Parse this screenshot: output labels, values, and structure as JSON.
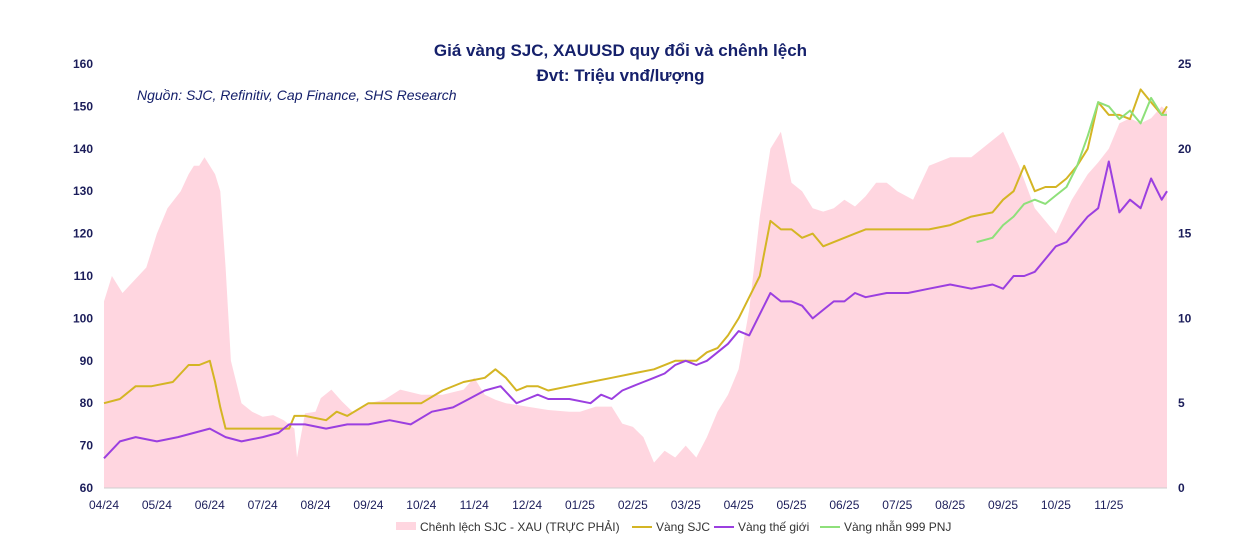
{
  "chart_data": {
    "type": "line",
    "title": "Giá vàng SJC, XAUUSD quy đổi và chênh lệch",
    "subtitle": "Đvt: Triệu vnđ/lượng",
    "source": "Nguồn: SJC, Refinitiv, Cap Finance, SHS Research",
    "x_tick_labels": [
      "04/24",
      "05/24",
      "06/24",
      "07/24",
      "08/24",
      "09/24",
      "10/24",
      "11/24",
      "12/24",
      "01/25",
      "02/25",
      "03/25",
      "04/25",
      "05/25",
      "06/25",
      "07/25",
      "08/25",
      "09/25",
      "10/25",
      "11/25"
    ],
    "x_range": [
      0,
      20.1
    ],
    "y_left": {
      "min": 60,
      "max": 160,
      "ticks": [
        60,
        70,
        80,
        90,
        100,
        110,
        120,
        130,
        140,
        150,
        160
      ]
    },
    "y_right": {
      "min": 0,
      "max": 25,
      "ticks": [
        0,
        5,
        10,
        15,
        20,
        25
      ]
    },
    "colors": {
      "spread": "#ffd6e0",
      "sjc": "#d4b524",
      "world": "#9b3fe0",
      "pnj": "#8ee07a",
      "axis": "#1b1d5a",
      "title": "#15206b"
    },
    "legend": [
      {
        "key": "spread",
        "label": "Chênh lệch SJC - XAU (TRỰC PHẢI)"
      },
      {
        "key": "sjc",
        "label": "Vàng SJC"
      },
      {
        "key": "world",
        "label": "Vàng thế giới"
      },
      {
        "key": "pnj",
        "label": "Vàng nhẫn 999 PNJ"
      }
    ],
    "series": [
      {
        "key": "spread",
        "name": "Chênh lệch SJC - XAU (TRỰC PHẢI)",
        "axis": "right",
        "type": "area",
        "x": [
          0,
          0.15,
          0.35,
          0.5,
          0.8,
          1.0,
          1.2,
          1.45,
          1.6,
          1.7,
          1.8,
          1.9,
          2.0,
          2.1,
          2.2,
          2.3,
          2.4,
          2.6,
          2.8,
          3.0,
          3.2,
          3.4,
          3.6,
          3.65,
          3.8,
          4.0,
          4.1,
          4.3,
          4.5,
          4.7,
          5.0,
          5.3,
          5.6,
          6.0,
          6.4,
          6.8,
          7.0,
          7.2,
          7.4,
          7.6,
          8.0,
          8.4,
          8.8,
          9.0,
          9.3,
          9.6,
          9.8,
          10.0,
          10.2,
          10.4,
          10.6,
          10.8,
          11.0,
          11.2,
          11.4,
          11.6,
          11.8,
          12.0,
          12.2,
          12.4,
          12.6,
          12.8,
          13.0,
          13.2,
          13.4,
          13.6,
          13.8,
          14.0,
          14.2,
          14.4,
          14.6,
          14.8,
          15.0,
          15.3,
          15.6,
          16.0,
          16.4,
          16.8,
          17.0,
          17.3,
          17.6,
          18.0,
          18.3,
          18.6,
          18.8,
          19.0,
          19.2,
          19.4,
          19.6,
          19.8,
          20.0,
          20.1
        ],
        "values": [
          11,
          12.5,
          11.5,
          12,
          13,
          15,
          16.5,
          17.5,
          18.5,
          19,
          19,
          19.5,
          19,
          18.5,
          17.5,
          13,
          7.5,
          5,
          4.5,
          4.2,
          4.3,
          4,
          3.5,
          1.8,
          4.4,
          4.5,
          5.3,
          5.8,
          5.1,
          4.5,
          5,
          5.2,
          5.8,
          5.5,
          5.5,
          5.8,
          6.5,
          5.5,
          5.2,
          5,
          4.8,
          4.6,
          4.5,
          4.5,
          4.8,
          4.8,
          3.8,
          3.6,
          3,
          1.5,
          2.2,
          1.8,
          2.5,
          1.8,
          3,
          4.5,
          5.5,
          7,
          10.5,
          16,
          20,
          21,
          18,
          17.5,
          16.5,
          16.3,
          16.5,
          17,
          16.6,
          17.2,
          18,
          18,
          17.5,
          17,
          19,
          19.5,
          19.5,
          20.5,
          21,
          19,
          16.5,
          15,
          17,
          18.5,
          19.2,
          20,
          21.5,
          21.8,
          21.5,
          21.8,
          22.5,
          22.2
        ]
      },
      {
        "key": "sjc",
        "name": "Vàng SJC",
        "axis": "left",
        "type": "line",
        "x": [
          0,
          0.3,
          0.6,
          0.9,
          1.3,
          1.6,
          1.8,
          2.0,
          2.1,
          2.2,
          2.3,
          2.5,
          3.0,
          3.5,
          3.6,
          3.8,
          4.2,
          4.4,
          4.6,
          5.0,
          5.4,
          5.6,
          6.0,
          6.4,
          6.8,
          7.2,
          7.4,
          7.6,
          7.8,
          8.0,
          8.2,
          8.4,
          8.8,
          9.2,
          9.6,
          10.0,
          10.4,
          10.8,
          11.0,
          11.2,
          11.4,
          11.6,
          11.8,
          12.0,
          12.2,
          12.4,
          12.6,
          12.8,
          13.0,
          13.2,
          13.4,
          13.6,
          14.0,
          14.2,
          14.4,
          14.8,
          15.2,
          15.6,
          16.0,
          16.4,
          16.8,
          17.0,
          17.2,
          17.4,
          17.6,
          17.8,
          18.0,
          18.2,
          18.4,
          18.6,
          18.8,
          19.0,
          19.2,
          19.4,
          19.6,
          19.8,
          20.0,
          20.1
        ],
        "values": [
          80,
          81,
          84,
          84,
          85,
          89,
          89,
          90,
          85,
          79,
          74,
          74,
          74,
          74,
          77,
          77,
          76,
          78,
          77,
          80,
          80,
          80,
          80,
          83,
          85,
          86,
          88,
          86,
          83,
          84,
          84,
          83,
          84,
          85,
          86,
          87,
          88,
          90,
          90,
          90,
          92,
          93,
          96,
          100,
          105,
          110,
          123,
          121,
          121,
          119,
          120,
          117,
          119,
          120,
          121,
          121,
          121,
          121,
          122,
          124,
          125,
          128,
          130,
          136,
          130,
          131,
          131,
          133,
          136,
          140,
          151,
          148,
          148,
          147,
          154,
          151,
          148,
          150
        ]
      },
      {
        "key": "world",
        "name": "Vàng thế giới",
        "axis": "left",
        "type": "line",
        "x": [
          0,
          0.3,
          0.6,
          1.0,
          1.4,
          1.7,
          2.0,
          2.3,
          2.6,
          3.0,
          3.3,
          3.5,
          3.8,
          4.2,
          4.6,
          5.0,
          5.4,
          5.8,
          6.2,
          6.6,
          6.9,
          7.2,
          7.5,
          7.8,
          8.0,
          8.2,
          8.4,
          8.8,
          9.2,
          9.4,
          9.6,
          9.8,
          10.0,
          10.2,
          10.4,
          10.6,
          10.8,
          11.0,
          11.2,
          11.4,
          11.6,
          11.8,
          12.0,
          12.2,
          12.4,
          12.6,
          12.8,
          13.0,
          13.2,
          13.4,
          13.6,
          13.8,
          14.0,
          14.2,
          14.4,
          14.8,
          15.2,
          15.6,
          16.0,
          16.4,
          16.8,
          17.0,
          17.2,
          17.4,
          17.6,
          17.8,
          18.0,
          18.2,
          18.4,
          18.6,
          18.8,
          19.0,
          19.2,
          19.4,
          19.6,
          19.8,
          20.0,
          20.1
        ],
        "values": [
          67,
          71,
          72,
          71,
          72,
          73,
          74,
          72,
          71,
          72,
          73,
          75,
          75,
          74,
          75,
          75,
          76,
          75,
          78,
          79,
          81,
          83,
          84,
          80,
          81,
          82,
          81,
          81,
          80,
          82,
          81,
          83,
          84,
          85,
          86,
          87,
          89,
          90,
          89,
          90,
          92,
          94,
          97,
          96,
          101,
          106,
          104,
          104,
          103,
          100,
          102,
          104,
          104,
          106,
          105,
          106,
          106,
          107,
          108,
          107,
          108,
          107,
          110,
          110,
          111,
          114,
          117,
          118,
          121,
          124,
          126,
          137,
          125,
          128,
          126,
          133,
          128,
          130
        ]
      },
      {
        "key": "pnj",
        "name": "Vàng nhẫn 999 PNJ",
        "axis": "left",
        "type": "line",
        "x": [
          16.5,
          16.8,
          17.0,
          17.2,
          17.4,
          17.6,
          17.8,
          18.0,
          18.2,
          18.4,
          18.6,
          18.8,
          19.0,
          19.2,
          19.4,
          19.6,
          19.8,
          20.0,
          20.1
        ],
        "values": [
          118,
          119,
          122,
          124,
          127,
          128,
          127,
          129,
          131,
          136,
          143,
          151,
          150,
          147,
          149,
          146,
          152,
          148,
          148
        ]
      }
    ]
  }
}
